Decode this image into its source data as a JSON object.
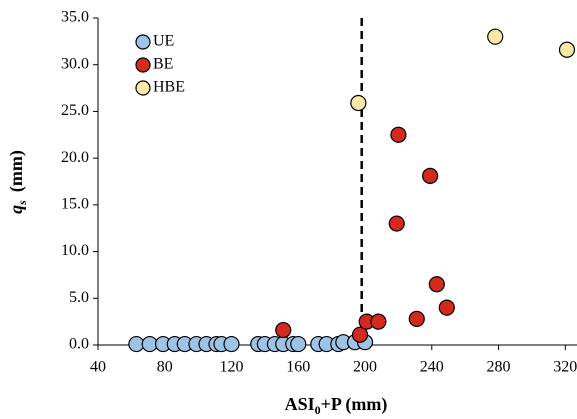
{
  "chart_data": {
    "type": "scatter",
    "xlabel": [
      "ASI",
      "0",
      "+P (mm)"
    ],
    "ylabel": [
      "q",
      "s",
      "(mm)"
    ],
    "xlim": [
      40,
      330
    ],
    "ylim": [
      0,
      35
    ],
    "xticks": [
      40,
      80,
      120,
      160,
      200,
      240,
      280,
      320
    ],
    "yticks": [
      {
        "value": 0,
        "label": "0.0"
      },
      {
        "value": 5,
        "label": "5.0"
      },
      {
        "value": 10,
        "label": "10.0"
      },
      {
        "value": 15,
        "label": "15.0"
      },
      {
        "value": 20,
        "label": "20.0"
      },
      {
        "value": 25,
        "label": "25.0"
      },
      {
        "value": 30,
        "label": "30.0"
      },
      {
        "value": 35,
        "label": "35.0"
      }
    ],
    "vline": 198,
    "legend": "upper left",
    "series": [
      {
        "name": "UE",
        "color": "#9dc3e6",
        "x": [
          63,
          71,
          79,
          86,
          92,
          99,
          105,
          111,
          114,
          120,
          136,
          140,
          146,
          151,
          157,
          160,
          172,
          177,
          184,
          187,
          194,
          200
        ],
        "values": [
          0.1,
          0.1,
          0.1,
          0.1,
          0.1,
          0.1,
          0.1,
          0.1,
          0.1,
          0.1,
          0.1,
          0.1,
          0.1,
          0.1,
          0.1,
          0.1,
          0.1,
          0.1,
          0.1,
          0.3,
          0.3,
          0.3
        ]
      },
      {
        "name": "BE",
        "color": "#d42a1e",
        "x": [
          151,
          197,
          201,
          208,
          220,
          219,
          239,
          231,
          243,
          249
        ],
        "values": [
          1.6,
          1.1,
          2.5,
          2.5,
          22.5,
          13.0,
          18.1,
          2.8,
          6.5,
          4.0
        ]
      },
      {
        "name": "HBE",
        "color": "#fde9a7",
        "x": [
          196,
          278,
          321
        ],
        "values": [
          25.9,
          33.0,
          31.6
        ]
      }
    ]
  }
}
